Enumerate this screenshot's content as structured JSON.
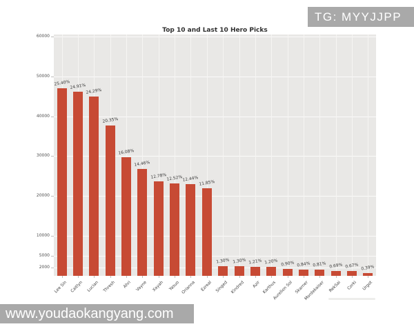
{
  "watermarks": {
    "top_badge": "TG: MYYJJPP",
    "bottom_bar": "www.youdaokangyang.com"
  },
  "chart_data": {
    "type": "bar",
    "title": "Top 10 and Last 10 Hero Picks",
    "xlabel": "",
    "ylabel": "",
    "categories": [
      "Lee Sin",
      "Caitlyn",
      "Lucian",
      "Thresh",
      "Ahri",
      "Vayne",
      "Xayah",
      "Yasuo",
      "Orianna",
      "Ezreal",
      "Singed",
      "Kindred",
      "Azir",
      "Karthus",
      "Aurelion Sol",
      "Skarner",
      "Mordekaiser",
      "RekSai",
      "Corki",
      "Urgot"
    ],
    "values": [
      46990,
      46080,
      44940,
      37650,
      29750,
      26750,
      23640,
      23160,
      23010,
      21920,
      2400,
      2400,
      2240,
      2220,
      1670,
      1550,
      1500,
      1280,
      1240,
      720
    ],
    "bar_labels": [
      "25.40%",
      "24.91%",
      "24.29%",
      "20.35%",
      "16.08%",
      "14.46%",
      "12.78%",
      "12.52%",
      "12.44%",
      "11.85%",
      "1.30%",
      "1.30%",
      "1.21%",
      "1.20%",
      "0.90%",
      "0.84%",
      "0.81%",
      "0.69%",
      "0.67%",
      "0.39%"
    ],
    "yticks": [
      2000,
      5000,
      10000,
      20000,
      30000,
      40000,
      50000,
      60000
    ],
    "ylim": [
      0,
      60500
    ],
    "grid": true,
    "legend": false,
    "bar_color": "#c74a34",
    "plot_background": "#e9e8e6",
    "grid_color": "#fbfbfa"
  }
}
